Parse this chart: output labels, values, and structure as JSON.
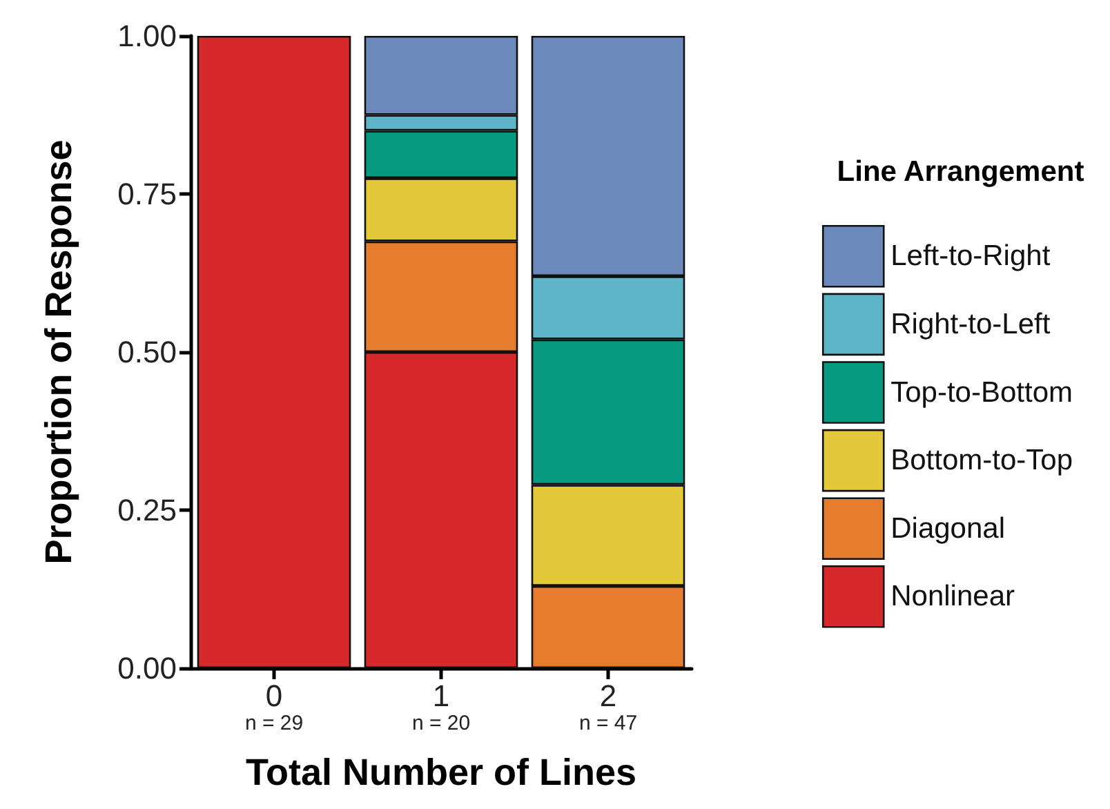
{
  "chart_data": {
    "type": "bar",
    "stacked": true,
    "xlabel": "Total Number of Lines",
    "ylabel": "Proportion of Response",
    "legend_title": "Line Arrangement",
    "categories": [
      "0",
      "1",
      "2"
    ],
    "series": [
      {
        "name": "Nonlinear",
        "color": "#d7282b",
        "values": [
          1.0,
          0.5,
          0
        ]
      },
      {
        "name": "Diagonal",
        "color": "#e67d2e",
        "values": [
          0,
          0.175,
          0.13
        ]
      },
      {
        "name": "Bottom-to-Top",
        "color": "#e3c83b",
        "values": [
          0,
          0.1,
          0.16
        ]
      },
      {
        "name": "Top-to-Bottom",
        "color": "#089a80",
        "values": [
          0,
          0.075,
          0.23
        ]
      },
      {
        "name": "Right-to-Left",
        "color": "#5fb5c8",
        "values": [
          0,
          0.025,
          0.1
        ]
      },
      {
        "name": "Left-to-Right",
        "color": "#6c89bb",
        "values": [
          0,
          0.125,
          0.38
        ]
      }
    ],
    "ylim": [
      0,
      1
    ],
    "yticks": [
      {
        "value": 0,
        "label": "0.00"
      },
      {
        "value": 0.25,
        "label": "0.25"
      },
      {
        "value": 0.5,
        "label": "0.50"
      },
      {
        "value": 0.75,
        "label": "0.75"
      },
      {
        "value": 1,
        "label": "1.00"
      }
    ],
    "annotations": [
      "n = 29",
      "n = 20",
      "n = 47"
    ],
    "grid": false,
    "legend": "right"
  }
}
